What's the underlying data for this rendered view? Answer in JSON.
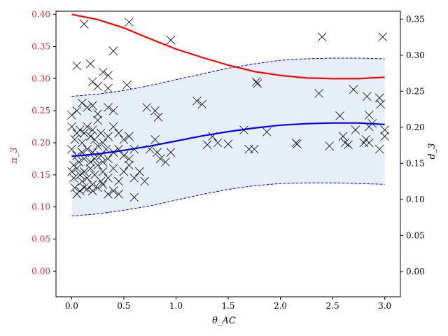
{
  "chart_data": {
    "type": "scatter",
    "xlabel": "θ_AC",
    "ylabel_left": "π_3",
    "ylabel_right": "d_3",
    "left_axis_color": "#d62728",
    "xlim": [
      -0.15,
      3.15
    ],
    "ylim_left": [
      -0.04,
      0.405
    ],
    "ylim_right": [
      -0.035,
      0.361
    ],
    "x_ticks": [
      0.0,
      0.5,
      1.0,
      1.5,
      2.0,
      2.5,
      3.0
    ],
    "x_tick_labels": [
      "0.0",
      "0.5",
      "1.0",
      "1.5",
      "2.0",
      "2.5",
      "3.0"
    ],
    "y_left_ticks": [
      0.0,
      0.05,
      0.1,
      0.15,
      0.2,
      0.25,
      0.3,
      0.35,
      0.4
    ],
    "y_left_tick_labels": [
      "0.00",
      "0.05",
      "0.10",
      "0.15",
      "0.20",
      "0.25",
      "0.30",
      "0.35",
      "0.40"
    ],
    "y_right_ticks": [
      0.0,
      0.05,
      0.1,
      0.15,
      0.2,
      0.25,
      0.3,
      0.35
    ],
    "y_right_tick_labels": [
      "0.00",
      "0.05",
      "0.10",
      "0.15",
      "0.20",
      "0.25",
      "0.30",
      "0.35"
    ],
    "grid": false,
    "series": [
      {
        "kind": "line",
        "axis": "left",
        "color": "#ff0000",
        "style": "solid",
        "x": [
          0.0,
          0.25,
          0.5,
          0.75,
          1.0,
          1.25,
          1.5,
          1.75,
          2.0,
          2.25,
          2.5,
          2.75,
          3.0
        ],
        "y": [
          0.4,
          0.392,
          0.379,
          0.362,
          0.346,
          0.333,
          0.321,
          0.311,
          0.305,
          0.301,
          0.3,
          0.3,
          0.302
        ]
      },
      {
        "kind": "line",
        "axis": "right",
        "color": "#0000ff",
        "style": "solid",
        "x": [
          0.0,
          0.25,
          0.5,
          0.75,
          1.0,
          1.25,
          1.5,
          1.75,
          2.0,
          2.25,
          2.5,
          2.75,
          3.0
        ],
        "y": [
          0.16,
          0.163,
          0.168,
          0.174,
          0.181,
          0.188,
          0.194,
          0.199,
          0.203,
          0.205,
          0.206,
          0.206,
          0.204
        ]
      },
      {
        "kind": "band",
        "axis": "right",
        "fill": "#e6eef7",
        "line_color": "#0000ff",
        "style": "dashed",
        "x": [
          0.0,
          0.25,
          0.5,
          0.75,
          1.0,
          1.25,
          1.5,
          1.75,
          2.0,
          2.25,
          2.5,
          2.75,
          3.0
        ],
        "upper": [
          0.243,
          0.246,
          0.251,
          0.258,
          0.266,
          0.274,
          0.282,
          0.288,
          0.293,
          0.295,
          0.296,
          0.296,
          0.295
        ],
        "lower": [
          0.077,
          0.08,
          0.085,
          0.091,
          0.099,
          0.107,
          0.114,
          0.119,
          0.122,
          0.123,
          0.123,
          0.122,
          0.121
        ]
      },
      {
        "kind": "scatter",
        "axis": "left",
        "marker": "x",
        "color": "#000000",
        "points": [
          [
            0.12,
            0.385
          ],
          [
            0.55,
            0.388
          ],
          [
            0.95,
            0.36
          ],
          [
            0.4,
            0.343
          ],
          [
            0.05,
            0.32
          ],
          [
            0.18,
            0.323
          ],
          [
            0.3,
            0.31
          ],
          [
            0.35,
            0.305
          ],
          [
            0.2,
            0.295
          ],
          [
            0.25,
            0.288
          ],
          [
            0.53,
            0.29
          ],
          [
            0.35,
            0.285
          ],
          [
            0.0,
            0.243
          ],
          [
            0.05,
            0.25
          ],
          [
            0.1,
            0.262
          ],
          [
            0.15,
            0.255
          ],
          [
            0.2,
            0.258
          ],
          [
            0.25,
            0.245
          ],
          [
            0.35,
            0.255
          ],
          [
            0.4,
            0.25
          ],
          [
            0.0,
            0.225
          ],
          [
            0.03,
            0.205
          ],
          [
            0.05,
            0.215
          ],
          [
            0.08,
            0.22
          ],
          [
            0.1,
            0.2
          ],
          [
            0.12,
            0.215
          ],
          [
            0.15,
            0.225
          ],
          [
            0.18,
            0.21
          ],
          [
            0.2,
            0.22
          ],
          [
            0.22,
            0.205
          ],
          [
            0.25,
            0.235
          ],
          [
            0.28,
            0.215
          ],
          [
            0.3,
            0.2
          ],
          [
            0.35,
            0.21
          ],
          [
            0.4,
            0.225
          ],
          [
            0.45,
            0.215
          ],
          [
            0.5,
            0.205
          ],
          [
            0.55,
            0.21
          ],
          [
            0.0,
            0.19
          ],
          [
            0.02,
            0.165
          ],
          [
            0.05,
            0.18
          ],
          [
            0.07,
            0.17
          ],
          [
            0.1,
            0.185
          ],
          [
            0.12,
            0.175
          ],
          [
            0.15,
            0.19
          ],
          [
            0.18,
            0.17
          ],
          [
            0.2,
            0.185
          ],
          [
            0.22,
            0.175
          ],
          [
            0.25,
            0.195
          ],
          [
            0.28,
            0.18
          ],
          [
            0.3,
            0.17
          ],
          [
            0.33,
            0.19
          ],
          [
            0.35,
            0.175
          ],
          [
            0.4,
            0.185
          ],
          [
            0.45,
            0.19
          ],
          [
            0.5,
            0.18
          ],
          [
            0.55,
            0.175
          ],
          [
            0.6,
            0.19
          ],
          [
            0.0,
            0.155
          ],
          [
            0.02,
            0.145
          ],
          [
            0.05,
            0.16
          ],
          [
            0.08,
            0.15
          ],
          [
            0.1,
            0.14
          ],
          [
            0.12,
            0.155
          ],
          [
            0.15,
            0.145
          ],
          [
            0.18,
            0.16
          ],
          [
            0.2,
            0.135
          ],
          [
            0.22,
            0.15
          ],
          [
            0.25,
            0.165
          ],
          [
            0.28,
            0.14
          ],
          [
            0.3,
            0.155
          ],
          [
            0.35,
            0.145
          ],
          [
            0.4,
            0.16
          ],
          [
            0.45,
            0.14
          ],
          [
            0.5,
            0.155
          ],
          [
            0.55,
            0.165
          ],
          [
            0.6,
            0.145
          ],
          [
            0.65,
            0.155
          ],
          [
            0.03,
            0.13
          ],
          [
            0.05,
            0.12
          ],
          [
            0.08,
            0.125
          ],
          [
            0.12,
            0.13
          ],
          [
            0.15,
            0.128
          ],
          [
            0.2,
            0.125
          ],
          [
            0.25,
            0.13
          ],
          [
            0.3,
            0.135
          ],
          [
            0.35,
            0.12
          ],
          [
            0.4,
            0.125
          ],
          [
            0.45,
            0.12
          ],
          [
            0.6,
            0.115
          ],
          [
            0.7,
            0.14
          ],
          [
            0.72,
            0.255
          ],
          [
            0.8,
            0.25
          ],
          [
            0.83,
            0.24
          ],
          [
            0.75,
            0.19
          ],
          [
            0.8,
            0.205
          ],
          [
            0.82,
            0.185
          ],
          [
            0.85,
            0.175
          ],
          [
            0.9,
            0.17
          ],
          [
            0.95,
            0.185
          ],
          [
            1.2,
            0.265
          ],
          [
            1.25,
            0.26
          ],
          [
            1.3,
            0.197
          ],
          [
            1.35,
            0.21
          ],
          [
            1.4,
            0.2
          ],
          [
            1.5,
            0.198
          ],
          [
            1.65,
            0.22
          ],
          [
            1.7,
            0.19
          ],
          [
            1.75,
            0.19
          ],
          [
            1.77,
            0.295
          ],
          [
            1.78,
            0.292
          ],
          [
            1.87,
            0.217
          ],
          [
            2.15,
            0.2
          ],
          [
            2.16,
            0.198
          ],
          [
            2.37,
            0.277
          ],
          [
            2.4,
            0.365
          ],
          [
            2.47,
            0.195
          ],
          [
            2.57,
            0.242
          ],
          [
            2.6,
            0.21
          ],
          [
            2.62,
            0.2
          ],
          [
            2.65,
            0.197
          ],
          [
            2.7,
            0.283
          ],
          [
            2.72,
            0.22
          ],
          [
            2.82,
            0.205
          ],
          [
            2.85,
            0.2
          ],
          [
            2.83,
            0.272
          ],
          [
            2.85,
            0.243
          ],
          [
            2.88,
            0.23
          ],
          [
            2.95,
            0.27
          ],
          [
            2.96,
            0.26
          ],
          [
            2.98,
            0.365
          ],
          [
            3.0,
            0.22
          ],
          [
            3.0,
            0.21
          ],
          [
            2.95,
            0.19
          ],
          [
            2.8,
            0.2
          ],
          [
            2.85,
            0.225
          ]
        ]
      }
    ]
  }
}
